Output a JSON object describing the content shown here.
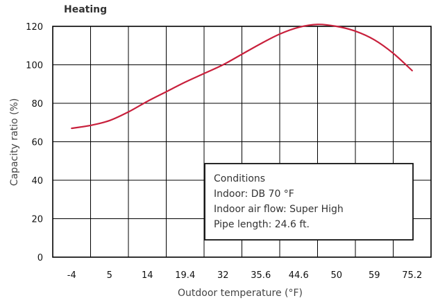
{
  "chart_data": {
    "type": "line",
    "title": "Heating",
    "xlabel": "Outdoor temperature (°F)",
    "ylabel": "Capacity ratio (%)",
    "x_categories": [
      "-4",
      "5",
      "14",
      "19.4",
      "32",
      "35.6",
      "44.6",
      "50",
      "59",
      "75.2"
    ],
    "y_ticks": [
      0,
      20,
      40,
      60,
      80,
      100,
      120
    ],
    "ylim": [
      0,
      120
    ],
    "grid": true,
    "series": [
      {
        "color": "#c8203c",
        "points": [
          {
            "x_index": 0,
            "y": 67
          },
          {
            "x_index": 0.5,
            "y": 68.5
          },
          {
            "x_index": 1,
            "y": 71
          },
          {
            "x_index": 1.5,
            "y": 75.5
          },
          {
            "x_index": 2,
            "y": 81
          },
          {
            "x_index": 2.5,
            "y": 86
          },
          {
            "x_index": 3,
            "y": 91
          },
          {
            "x_index": 3.5,
            "y": 95.5
          },
          {
            "x_index": 4,
            "y": 100
          },
          {
            "x_index": 4.5,
            "y": 105.5
          },
          {
            "x_index": 5,
            "y": 111
          },
          {
            "x_index": 5.5,
            "y": 116
          },
          {
            "x_index": 6,
            "y": 119.5
          },
          {
            "x_index": 6.5,
            "y": 121
          },
          {
            "x_index": 7,
            "y": 120
          },
          {
            "x_index": 7.5,
            "y": 117.5
          },
          {
            "x_index": 8,
            "y": 113
          },
          {
            "x_index": 8.5,
            "y": 106
          },
          {
            "x_index": 9,
            "y": 97
          }
        ]
      }
    ],
    "legend_box": {
      "position": "bottom-right",
      "lines": [
        "Conditions",
        "Indoor: DB 70 °F",
        "Indoor air flow: Super High",
        "Pipe length: 24.6 ft."
      ]
    }
  }
}
